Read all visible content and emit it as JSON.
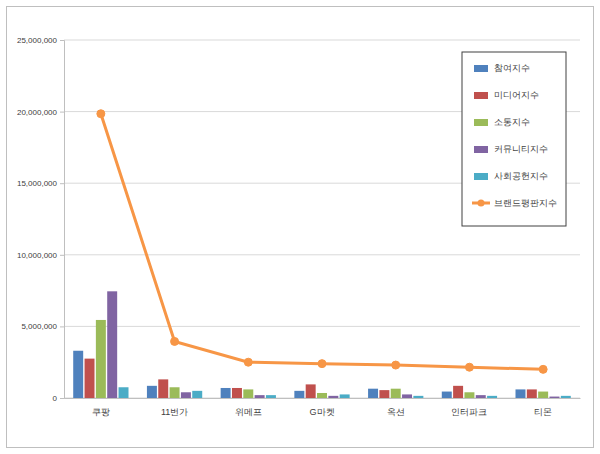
{
  "chart_data": {
    "type": "bar",
    "categories": [
      "쿠팡",
      "11번가",
      "위메프",
      "G마켓",
      "옥션",
      "인터파크",
      "티몬"
    ],
    "series": [
      {
        "name": "참여지수",
        "color": "#4f81bd",
        "type": "bar",
        "values": [
          3300000,
          850000,
          700000,
          500000,
          650000,
          450000,
          600000
        ]
      },
      {
        "name": "미디어지수",
        "color": "#c0504d",
        "type": "bar",
        "values": [
          2750000,
          1300000,
          700000,
          950000,
          550000,
          850000,
          600000
        ]
      },
      {
        "name": "소통지수",
        "color": "#9bbb59",
        "type": "bar",
        "values": [
          5450000,
          750000,
          600000,
          350000,
          650000,
          400000,
          450000
        ]
      },
      {
        "name": "커뮤니티지수",
        "color": "#8064a2",
        "type": "bar",
        "values": [
          7450000,
          400000,
          200000,
          150000,
          250000,
          200000,
          100000
        ]
      },
      {
        "name": "사회공헌지수",
        "color": "#4bacc6",
        "type": "bar",
        "values": [
          750000,
          500000,
          200000,
          250000,
          150000,
          150000,
          150000
        ]
      },
      {
        "name": "브랜드평판지수",
        "color": "#f79646",
        "type": "line",
        "marker": "circle",
        "values": [
          19850000,
          3950000,
          2500000,
          2400000,
          2300000,
          2150000,
          2000000
        ]
      }
    ],
    "ylim": [
      0,
      25000000
    ],
    "yticks": [
      0,
      {
        "value": 5000000,
        "label": "5,000,000"
      },
      {
        "value": 10000000,
        "label": "10,000,000"
      },
      {
        "value": 15000000,
        "label": "15,000,000"
      },
      {
        "value": 20000000,
        "label": "20,000,000"
      },
      {
        "value": 25000000,
        "label": "25,000,000"
      }
    ],
    "grid": true,
    "legend": "top-right"
  }
}
